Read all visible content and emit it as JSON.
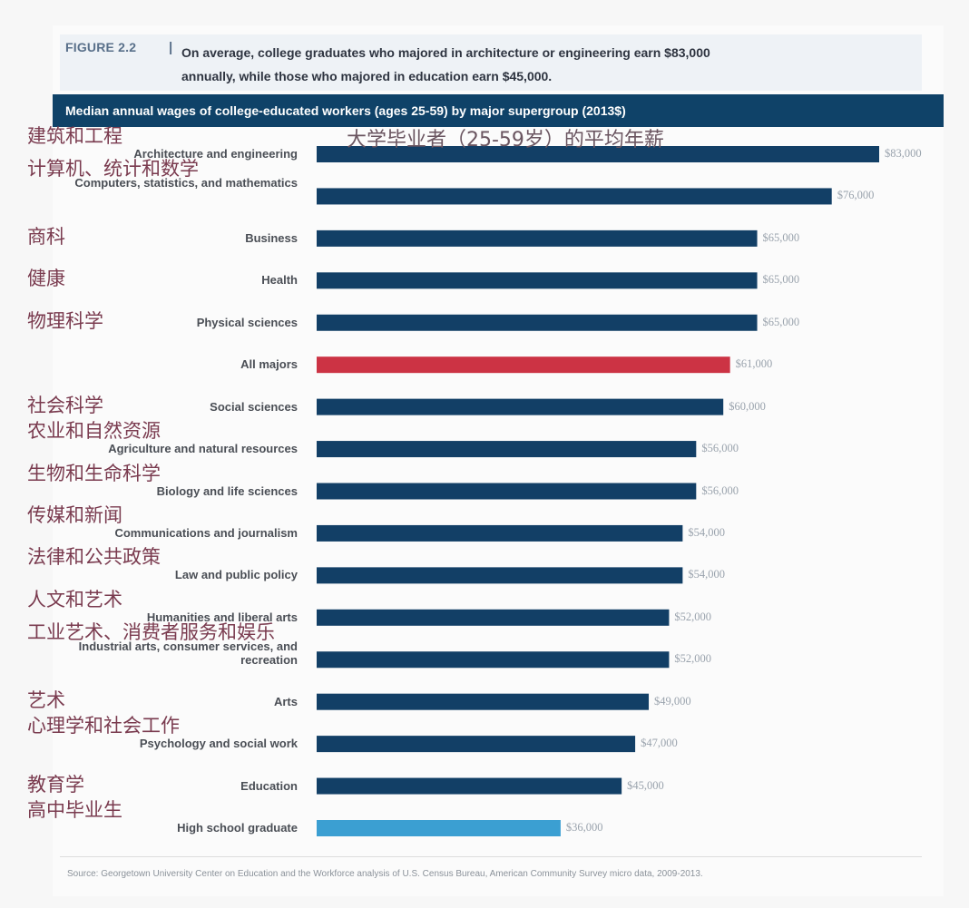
{
  "figure": {
    "label": "FIGURE 2.2",
    "separator": "|",
    "caption_line1": "On average, college graduates who majored in architecture or engineering earn $83,000",
    "caption_line2": "annually, while those who majored in education earn $45,000."
  },
  "subtitle_cn": "大学毕业者（25-59岁）的平均年薪",
  "source": "Source: Georgetown University Center on Education and the Workforce analysis of U.S. Census Bureau, American Community Survey micro data, 2009-2013.",
  "colors": {
    "bar_default": "#123f66",
    "bar_all_majors": "#cc3344",
    "bar_high_school": "#3b9fd2",
    "title_bar": "#0f4268"
  },
  "chart_data": {
    "type": "bar",
    "orientation": "horizontal",
    "title": "Median annual wages of college-educated workers (ages 25-59) by major supergroup (2013$)",
    "xlim": [
      0,
      83000
    ],
    "grid": false,
    "categories": [
      {
        "label": "Architecture and engineering",
        "cn": "建筑和工程",
        "value": 83000,
        "value_label": "$83,000",
        "kind": "default"
      },
      {
        "label": "Computers, statistics, and mathematics",
        "cn": "计算机、统计和数学",
        "value": 76000,
        "value_label": "$76,000",
        "kind": "default"
      },
      {
        "label": "Business",
        "cn": "商科",
        "value": 65000,
        "value_label": "$65,000",
        "kind": "default"
      },
      {
        "label": "Health",
        "cn": "健康",
        "value": 65000,
        "value_label": "$65,000",
        "kind": "default"
      },
      {
        "label": "Physical sciences",
        "cn": "物理科学",
        "value": 65000,
        "value_label": "$65,000",
        "kind": "default"
      },
      {
        "label": "All majors",
        "cn": "",
        "value": 61000,
        "value_label": "$61,000",
        "kind": "all_majors"
      },
      {
        "label": "Social sciences",
        "cn": "社会科学",
        "value": 60000,
        "value_label": "$60,000",
        "kind": "default"
      },
      {
        "label": "Agriculture and natural resources",
        "cn": "农业和自然资源",
        "value": 56000,
        "value_label": "$56,000",
        "kind": "default"
      },
      {
        "label": "Biology and life sciences",
        "cn": "生物和生命科学",
        "value": 56000,
        "value_label": "$56,000",
        "kind": "default"
      },
      {
        "label": "Communications and journalism",
        "cn": "传媒和新闻",
        "value": 54000,
        "value_label": "$54,000",
        "kind": "default"
      },
      {
        "label": "Law and public policy",
        "cn": "法律和公共政策",
        "value": 54000,
        "value_label": "$54,000",
        "kind": "default"
      },
      {
        "label": "Humanities and liberal arts",
        "cn": "人文和艺术",
        "value": 52000,
        "value_label": "$52,000",
        "kind": "default"
      },
      {
        "label": "Industrial arts, consumer services, and recreation",
        "cn": "工业艺术、消费者服务和娱乐",
        "value": 52000,
        "value_label": "$52,000",
        "kind": "default"
      },
      {
        "label": "Arts",
        "cn": "艺术",
        "value": 49000,
        "value_label": "$49,000",
        "kind": "default"
      },
      {
        "label": "Psychology and social work",
        "cn": "心理学和社会工作",
        "value": 47000,
        "value_label": "$47,000",
        "kind": "default"
      },
      {
        "label": "Education",
        "cn": "教育学",
        "value": 45000,
        "value_label": "$45,000",
        "kind": "default"
      },
      {
        "label": "High school graduate",
        "cn": "高中毕业生",
        "value": 36000,
        "value_label": "$36,000",
        "kind": "high_school"
      }
    ]
  }
}
